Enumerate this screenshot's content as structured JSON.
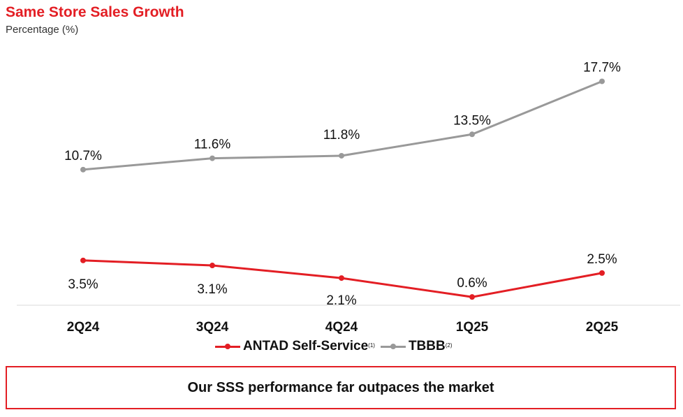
{
  "chart_data": {
    "type": "line",
    "title": "Same Store Sales Growth",
    "subtitle": "Percentage (%)",
    "categories": [
      "2Q24",
      "3Q24",
      "4Q24",
      "1Q25",
      "2Q25"
    ],
    "series": [
      {
        "name": "ANTAD Self-Service",
        "footnote": "(1)",
        "color": "#e31e24",
        "values": [
          3.5,
          3.1,
          2.1,
          0.6,
          2.5
        ],
        "labels": [
          "3.5%",
          "3.1%",
          "2.1%",
          "0.6%",
          "2.5%"
        ]
      },
      {
        "name": "TBBB",
        "footnote": "(2)",
        "color": "#999999",
        "values": [
          10.7,
          11.6,
          11.8,
          13.5,
          17.7
        ],
        "labels": [
          "10.7%",
          "11.6%",
          "11.8%",
          "13.5%",
          "17.7%"
        ]
      }
    ],
    "ylim": [
      0,
      19
    ],
    "grid": false,
    "legend_position": "bottom"
  },
  "callout": {
    "text": "Our SSS performance far outpaces the market"
  }
}
